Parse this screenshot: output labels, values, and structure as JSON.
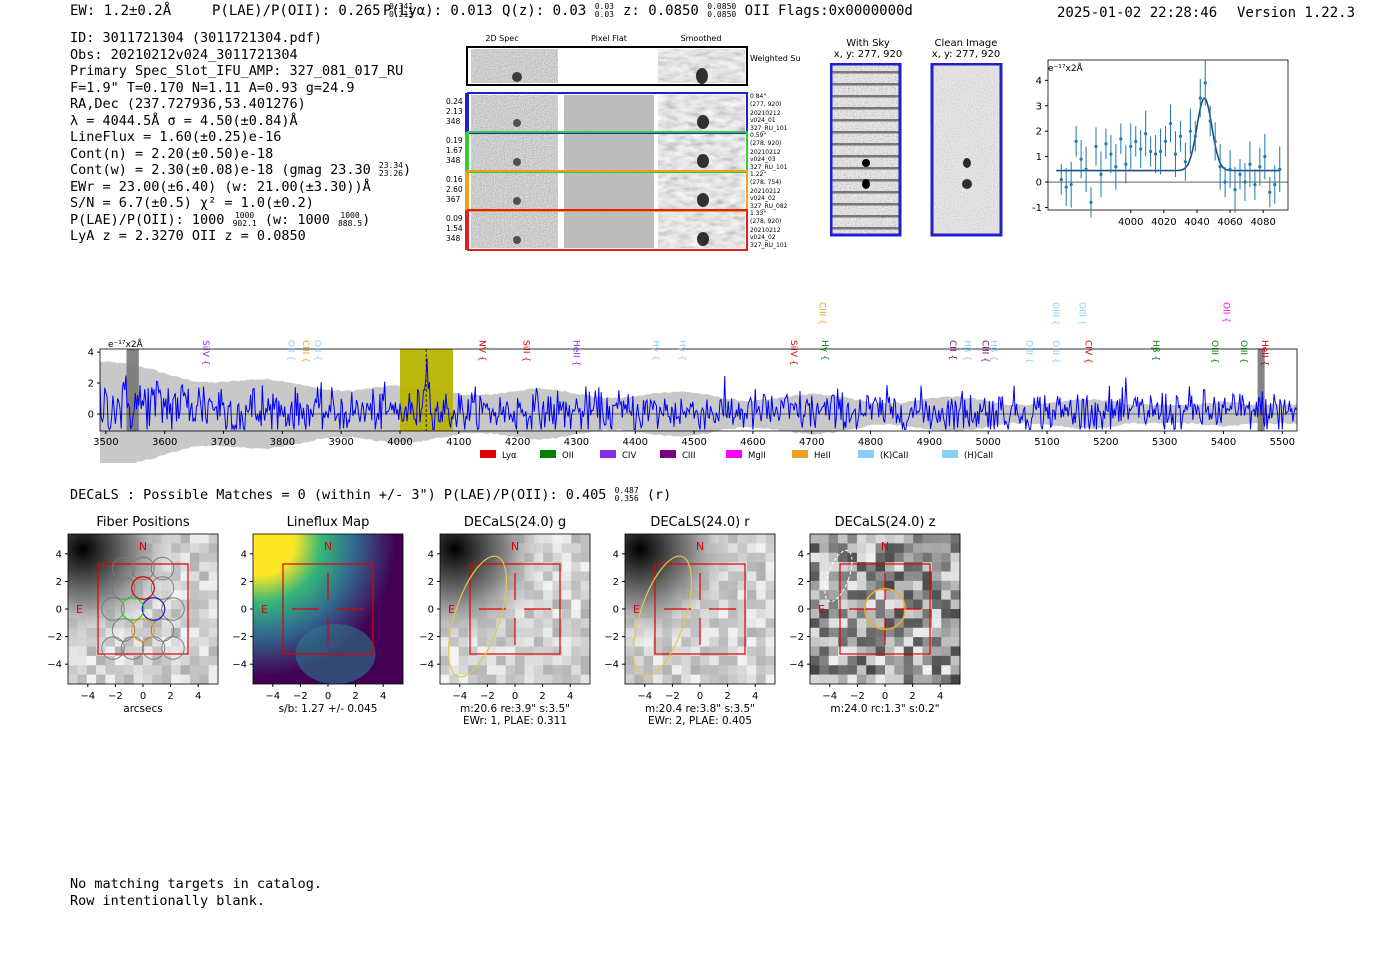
{
  "header": {
    "ew": "EW: 1.2±0.2Å",
    "plae_label": "P(LAE)/P(OII): 0.265",
    "plae_hi": "0.341",
    "plae_lo": "0.213",
    "plya": "P(Lyα): 0.013",
    "q_label": "Q(z): 0.03",
    "q_hi": "0.03",
    "q_lo": "0.03",
    "z_label": "z: 0.0850",
    "z_hi": "0.0850",
    "z_lo": "0.0850",
    "z_line": "OII",
    "flags": "Flags:0x0000000d",
    "timestamp": "2025-01-02 22:28:46",
    "version": "Version 1.22.3"
  },
  "info": {
    "id": "ID: 3011721304 (3011721304.pdf)",
    "obs": "Obs: 20210212v024_3011721304",
    "spec": "Primary Spec_Slot_IFU_AMP: 327_081_017_RU",
    "params": "F=1.9\"  T=0.170  N=1.11  A=0.93  g=24.9",
    "radec": "RA,Dec (237.727936,53.401276)",
    "lambda": "λ = 4044.5Å  σ = 4.50(±0.84)Å",
    "lineflux": "LineFlux = 1.60(±0.25)e-16",
    "contn": "Cont(n) = 2.20(±0.50)e-18",
    "contw_label": "Cont(w) = 2.30(±0.08)e-18 (gmag 23.30",
    "contw_hi": "23.34",
    "contw_lo": "23.26",
    "contw_end": ")",
    "ewr": "EWr = 23.00(±6.40) (w: 21.00(±3.30))Å",
    "sn": "S/N = 6.7(±0.5)  χ² = 1.0(±0.2)",
    "plae_label": "P(LAE)/P(OII): 1000",
    "plae_hi": "1000",
    "plae_lo": "902.1",
    "plae_w": "(w: 1000",
    "plae_w_hi": "1000",
    "plae_w_lo": "888.5",
    "plae_end": ")",
    "lyaz": "LyA z = 2.3270  OII z = 0.0850"
  },
  "cutouts": {
    "col_2d": "2D Spec",
    "col_flat": "Pixel Flat",
    "col_smooth": "Smoothed",
    "weighted_sum": "Weighted Sum",
    "fibers": [
      {
        "v1": "0.24",
        "v2": "2.13",
        "v3": "348",
        "d1": "0.84\"",
        "d2": "(277, 920)",
        "d3": "20210212",
        "d4": "v024_01",
        "d5": "327_RU_101",
        "color": "#1f1fd0"
      },
      {
        "v1": "0.19",
        "v2": "1.67",
        "v3": "348",
        "d1": "0.59\"",
        "d2": "(278, 920)",
        "d3": "20210212",
        "d4": "v024_03",
        "d5": "327_RU_101",
        "color": "#33cc33"
      },
      {
        "v1": "0.16",
        "v2": "2.60",
        "v3": "367",
        "d1": "1.22\"",
        "d2": "(278, 754)",
        "d3": "20210212",
        "d4": "v024_02",
        "d5": "327_RU_082",
        "color": "#f0a020"
      },
      {
        "v1": "0.09",
        "v2": "1.54",
        "v3": "348",
        "d1": "1.33\"",
        "d2": "(278, 920)",
        "d3": "20210212",
        "d4": "v024_02",
        "d5": "327_RU_101",
        "color": "#e02020"
      }
    ]
  },
  "sky": {
    "with_sky_title": "With Sky",
    "with_sky_xy": "x, y: 277, 920",
    "clean_title": "Clean Image",
    "clean_xy": "x, y: 277, 920"
  },
  "zoom_chart": {
    "ylabel": "e⁻¹⁷x2Å"
  },
  "spectrum": {
    "ylabel": "e⁻¹⁷x2Å",
    "lines": [
      {
        "name": "SiIV",
        "wave": 3660,
        "color": "#8a2be2",
        "level": 1
      },
      {
        "name": "OII",
        "wave": 3805,
        "color": "#87cefa",
        "level": 1
      },
      {
        "name": "CIII",
        "wave": 3830,
        "color": "#f0a020",
        "level": 1
      },
      {
        "name": "OII",
        "wave": 3850,
        "color": "#87cefa",
        "level": 1
      },
      {
        "name": "NV",
        "wave": 4130,
        "color": "#e00000",
        "level": 1
      },
      {
        "name": "SiII",
        "wave": 4205,
        "color": "#e00000",
        "level": 1
      },
      {
        "name": "HeII",
        "wave": 4290,
        "color": "#8a2be2",
        "level": 1
      },
      {
        "name": "Hγ",
        "wave": 4425,
        "color": "#87cefa",
        "level": 1
      },
      {
        "name": "Hγ",
        "wave": 4470,
        "color": "#87cefa",
        "level": 1
      },
      {
        "name": "SiIV",
        "wave": 4660,
        "color": "#e00000",
        "level": 1
      },
      {
        "name": "CIII",
        "wave": 4708,
        "color": "#f0a020",
        "level": 2
      },
      {
        "name": "Hγ",
        "wave": 4712,
        "color": "#008000",
        "level": 1
      },
      {
        "name": "CII",
        "wave": 4930,
        "color": "#800080",
        "level": 1
      },
      {
        "name": "Hβ",
        "wave": 4955,
        "color": "#87cefa",
        "level": 1
      },
      {
        "name": "CIII",
        "wave": 4985,
        "color": "#800080",
        "level": 1
      },
      {
        "name": "Hβ",
        "wave": 5000,
        "color": "#87cefa",
        "level": 1
      },
      {
        "name": "OIII",
        "wave": 5060,
        "color": "#87cefa",
        "level": 1
      },
      {
        "name": "OIII",
        "wave": 5105,
        "color": "#87cefa",
        "level": 1
      },
      {
        "name": "OIII",
        "wave": 5105,
        "color": "#87cefa",
        "level": 2
      },
      {
        "name": "OIII",
        "wave": 5150,
        "color": "#87cefa",
        "level": 2
      },
      {
        "name": "CIV",
        "wave": 5160,
        "color": "#e00000",
        "level": 1
      },
      {
        "name": "Hβ",
        "wave": 5275,
        "color": "#008000",
        "level": 1
      },
      {
        "name": "OIII",
        "wave": 5375,
        "color": "#008000",
        "level": 1
      },
      {
        "name": "OII",
        "wave": 5395,
        "color": "#ff00ff",
        "level": 2
      },
      {
        "name": "OIII",
        "wave": 5425,
        "color": "#008000",
        "level": 1
      },
      {
        "name": "HeII",
        "wave": 5460,
        "color": "#e00000",
        "level": 1
      }
    ],
    "legend": [
      {
        "name": "Lyα",
        "color": "#e00000"
      },
      {
        "name": "OII",
        "color": "#008000"
      },
      {
        "name": "CIV",
        "color": "#8a2be2"
      },
      {
        "name": "CIII",
        "color": "#800080"
      },
      {
        "name": "MgII",
        "color": "#ff00ff"
      },
      {
        "name": "HeII",
        "color": "#f0a020"
      },
      {
        "name": "(K)CaII",
        "color": "#87cefa"
      },
      {
        "name": "(H)CaII",
        "color": "#87cefa"
      }
    ]
  },
  "decals": {
    "summary_label": "DECaLS : Possible Matches = 0 (within +/- 3\")  P(LAE)/P(OII): 0.405",
    "summary_hi": "0.487",
    "summary_lo": "0.356",
    "summary_end": "(r)",
    "panels": [
      {
        "title": "Fiber Positions",
        "line1": "arcsecs",
        "line2": ""
      },
      {
        "title": "Lineflux Map",
        "line1": "s/b: 1.27 +/- 0.045",
        "line2": ""
      },
      {
        "title": "DECaLS(24.0) g",
        "line1": "m:20.6  re:3.9\"  s:3.5\"",
        "line2": "EWr: 1, PLAE: 0.311"
      },
      {
        "title": "DECaLS(24.0) r",
        "line1": "m:20.4  re:3.8\"  s:3.5\"",
        "line2": "EWr: 2, PLAE: 0.405"
      },
      {
        "title": "DECaLS(24.0) z",
        "line1": "m:24.0 rc:1.3\"  s:0.2\"",
        "line2": ""
      }
    ],
    "north": "N",
    "east": "E"
  },
  "footer": {
    "line1": "No matching targets in catalog.",
    "line2": "Row intentionally blank."
  },
  "chart_data": [
    {
      "type": "line",
      "title": "",
      "xlabel": "",
      "ylabel": "e⁻¹⁷x2Å",
      "xlim": [
        3950,
        4095
      ],
      "ylim": [
        -1.1,
        4.8
      ],
      "xticks": [
        4000,
        4020,
        4040,
        4060,
        4080
      ],
      "yticks": [
        -1,
        0,
        1,
        2,
        3,
        4
      ],
      "series": [
        {
          "name": "gaussian fit",
          "center": 4044.5,
          "sigma": 4.5,
          "amplitude": 2.85,
          "baseline": 0.45
        },
        {
          "name": "data",
          "style": "errorbar",
          "x": [
            3958,
            3961,
            3964,
            3967,
            3970,
            3973,
            3976,
            3979,
            3982,
            3985,
            3988,
            3991,
            3994,
            3997,
            4000,
            4003,
            4006,
            4009,
            4012,
            4015,
            4018,
            4021,
            4024,
            4027,
            4030,
            4033,
            4036,
            4039,
            4042,
            4045,
            4048,
            4051,
            4054,
            4057,
            4060,
            4063,
            4066,
            4069,
            4072,
            4075,
            4078,
            4081,
            4084,
            4087,
            4090
          ],
          "y": [
            0.1,
            -0.2,
            -0.1,
            1.6,
            0.9,
            0.5,
            -0.8,
            1.4,
            0.3,
            1.5,
            1.1,
            0.6,
            1.7,
            0.7,
            1.4,
            1.6,
            1.3,
            1.9,
            1.2,
            1.1,
            1.2,
            1.6,
            2.3,
            1.1,
            1.8,
            0.8,
            2.0,
            1.8,
            3.3,
            3.9,
            2.4,
            1.6,
            0.6,
            0.0,
            0.5,
            -0.3,
            0.3,
            0.0,
            0.7,
            -0.1,
            0.6,
            1.0,
            -0.4,
            -0.1,
            0.5
          ]
        }
      ]
    },
    {
      "type": "line",
      "title": "",
      "xlabel": "",
      "ylabel": "e⁻¹⁷x2Å",
      "xlim": [
        3490,
        5525
      ],
      "ylim": [
        -1.1,
        4.2
      ],
      "xticks": [
        3500,
        3600,
        3700,
        3800,
        3900,
        4000,
        4100,
        4200,
        4300,
        4400,
        4500,
        4600,
        4700,
        4800,
        4900,
        5000,
        5100,
        5200,
        5300,
        5400,
        5500
      ],
      "yticks": [
        0,
        2,
        4
      ],
      "highlight": [
        4000,
        4090
      ],
      "emission_marker": 4044.5,
      "masked": [
        [
          3535,
          3556
        ],
        [
          5458,
          5470
        ]
      ],
      "series": [
        {
          "name": "flux",
          "color": "#0000ff"
        },
        {
          "name": "noise",
          "color": "#bbbbbb"
        }
      ]
    }
  ]
}
